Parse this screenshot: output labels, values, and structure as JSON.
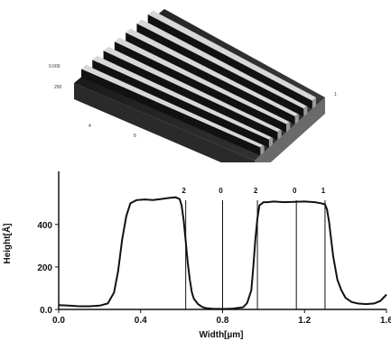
{
  "afm_image": {
    "axis_ticks": [
      "0.000",
      "250",
      "4",
      "8",
      "1"
    ]
  },
  "chart_data": {
    "type": "line",
    "title": "",
    "xlabel": "Width[µm]",
    "ylabel": "Height[Å]",
    "xlim": [
      0.0,
      1.6
    ],
    "ylim": [
      0,
      650
    ],
    "x_ticks": [
      "0.0",
      "0.4",
      "0.8",
      "1.2",
      "1.6"
    ],
    "y_ticks": [
      "0.0",
      "200",
      "400"
    ],
    "y_tick_values": [
      0,
      200,
      400
    ],
    "x_tick_values": [
      0.0,
      0.4,
      0.8,
      1.2,
      1.6
    ],
    "series": [
      {
        "x": [
          0.0,
          0.05,
          0.1,
          0.15,
          0.2,
          0.24,
          0.27,
          0.29,
          0.31,
          0.33,
          0.35,
          0.38,
          0.42,
          0.46,
          0.5,
          0.54,
          0.57,
          0.59,
          0.6,
          0.61,
          0.62,
          0.63,
          0.64,
          0.65,
          0.66,
          0.68,
          0.7,
          0.72,
          0.75,
          0.8,
          0.85,
          0.9,
          0.92,
          0.94,
          0.95,
          0.96,
          0.97,
          0.98,
          1.0,
          1.02,
          1.05,
          1.1,
          1.15,
          1.2,
          1.25,
          1.28,
          1.3,
          1.31,
          1.32,
          1.33,
          1.34,
          1.36,
          1.38,
          1.4,
          1.43,
          1.46,
          1.5,
          1.54,
          1.57,
          1.6
        ],
        "y": [
          20,
          18,
          15,
          15,
          18,
          28,
          80,
          180,
          330,
          440,
          500,
          515,
          518,
          515,
          520,
          525,
          528,
          520,
          490,
          420,
          320,
          220,
          140,
          80,
          50,
          25,
          12,
          6,
          3,
          2,
          4,
          10,
          30,
          90,
          200,
          330,
          430,
          490,
          505,
          505,
          508,
          505,
          507,
          508,
          505,
          500,
          495,
          470,
          410,
          330,
          250,
          140,
          90,
          55,
          35,
          28,
          25,
          28,
          40,
          70
        ]
      }
    ],
    "cursors": [
      {
        "label": "2",
        "x": 0.62
      },
      {
        "label": "0",
        "x": 0.8
      },
      {
        "label": "2",
        "x": 0.97
      },
      {
        "label": "0",
        "x": 1.16
      },
      {
        "label": "1",
        "x": 1.3
      }
    ],
    "grid": false
  }
}
